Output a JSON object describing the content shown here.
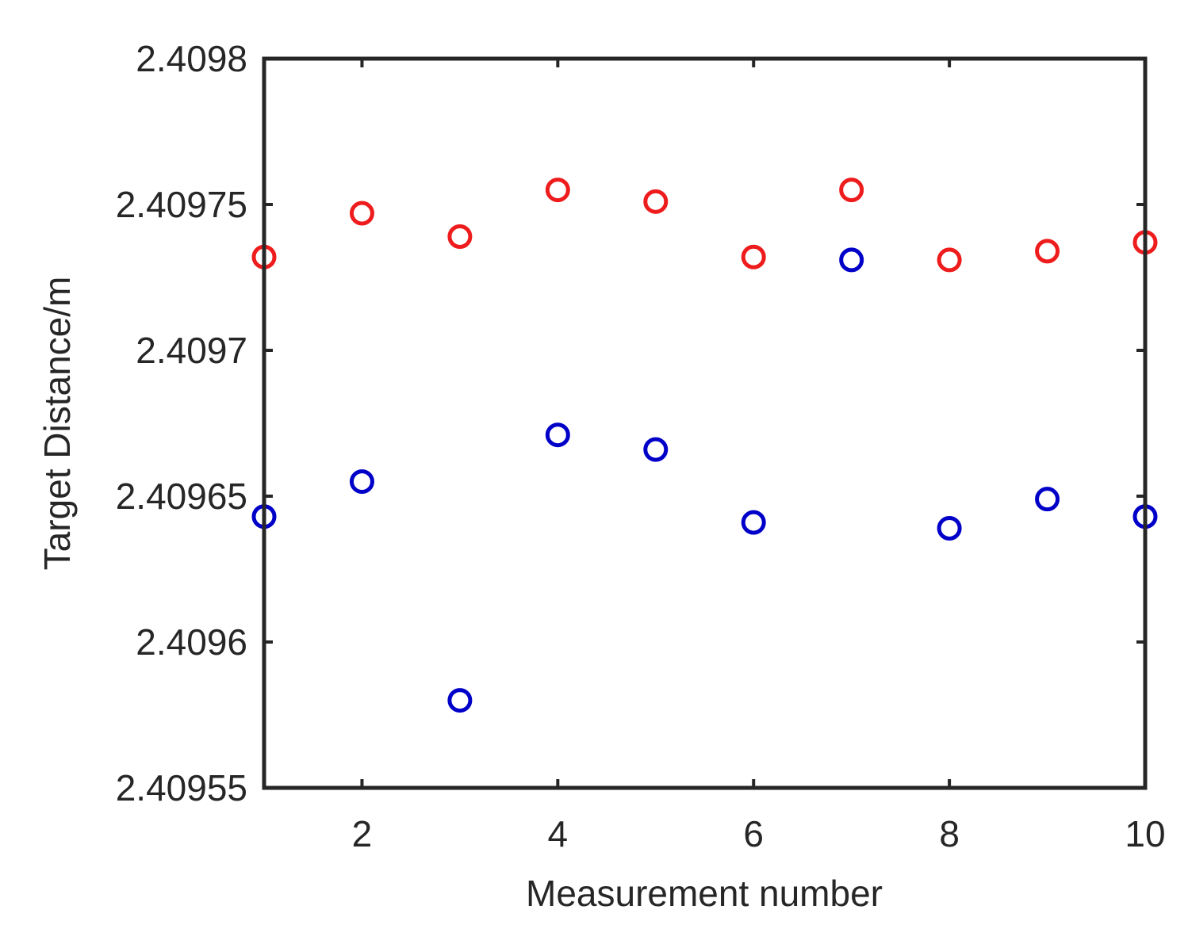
{
  "chart_data": {
    "type": "scatter",
    "title": "",
    "xlabel": "Measurement number",
    "ylabel": "Target Distance/m",
    "xlim": [
      1,
      10
    ],
    "ylim": [
      2.40955,
      2.4098
    ],
    "xticks": [
      2,
      4,
      6,
      8,
      10
    ],
    "xtick_labels": [
      "2",
      "4",
      "6",
      "8",
      "10"
    ],
    "yticks": [
      2.40955,
      2.4096,
      2.40965,
      2.4097,
      2.40975,
      2.4098
    ],
    "ytick_labels": [
      "2.40955",
      "2.4096",
      "2.40965",
      "2.4097",
      "2.40975",
      "2.4098"
    ],
    "grid": false,
    "legend": false,
    "marker": "circle-open",
    "x": [
      1,
      2,
      3,
      4,
      5,
      6,
      7,
      8,
      9,
      10
    ],
    "series": [
      {
        "color": "#ee1c1c",
        "values": [
          2.409732,
          2.409747,
          2.409739,
          2.409755,
          2.409751,
          2.409732,
          2.409755,
          2.409731,
          2.409734,
          2.409737
        ]
      },
      {
        "color": "#0000c8",
        "values": [
          2.409643,
          2.409655,
          2.40958,
          2.409671,
          2.409666,
          2.409641,
          2.409731,
          2.409639,
          2.409649,
          2.409643
        ]
      }
    ]
  }
}
